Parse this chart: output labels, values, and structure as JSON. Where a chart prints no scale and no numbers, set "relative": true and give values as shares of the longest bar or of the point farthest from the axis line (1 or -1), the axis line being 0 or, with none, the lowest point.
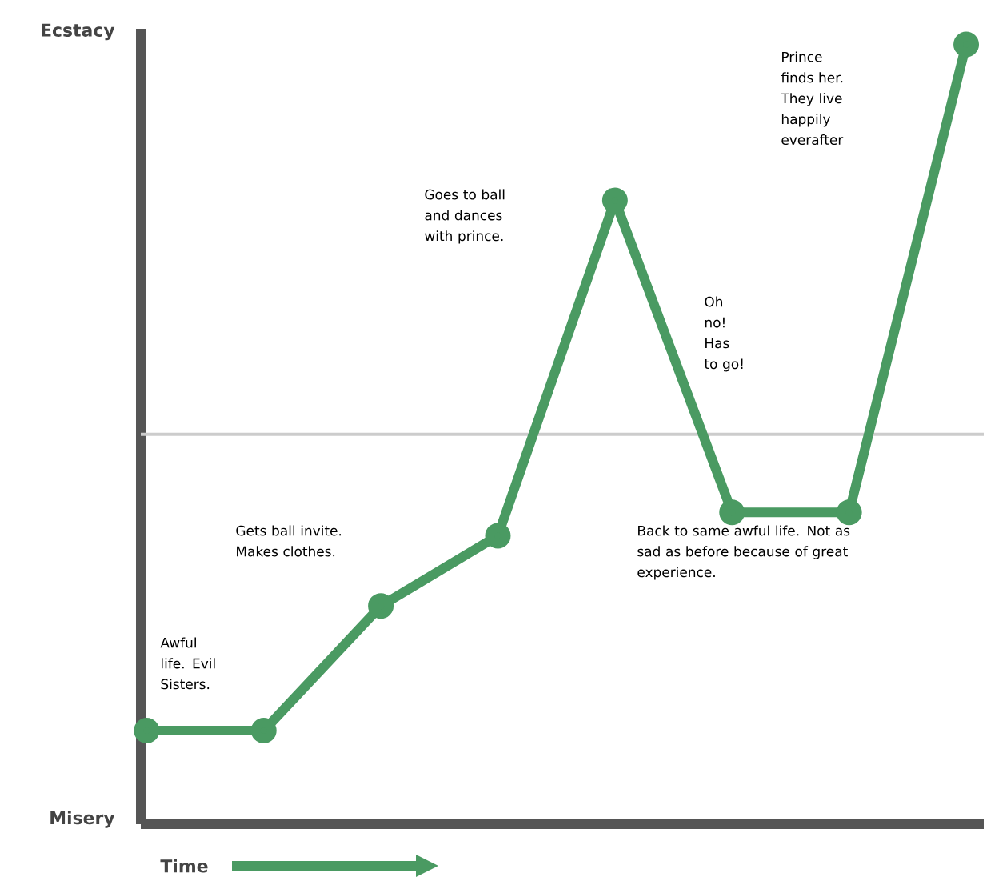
{
  "chart_data": {
    "type": "line",
    "xlabel": "Time",
    "relative": true,
    "marker": "circle",
    "color": "#4a9a62",
    "categories": [
      null,
      null,
      null,
      null,
      null,
      null,
      null,
      null
    ],
    "values": [
      0.12,
      0.12,
      0.28,
      0.37,
      0.8,
      0.4,
      0.4,
      1
    ],
    "ref_lines": [
      {
        "axis": "y",
        "value": 0.5,
        "color": "#cccccc"
      }
    ],
    "annotations": [
      "Ecstacy",
      "Misery",
      "Awful life. Evil Sisters.",
      "Gets ball invite. Makes clothes.",
      "Goes to ball and dances with prince.",
      "Oh no! Has to go!",
      "Back to same awful life. Not as sad as before because of great experience.",
      "Prince finds her. They live happily everafter"
    ]
  }
}
